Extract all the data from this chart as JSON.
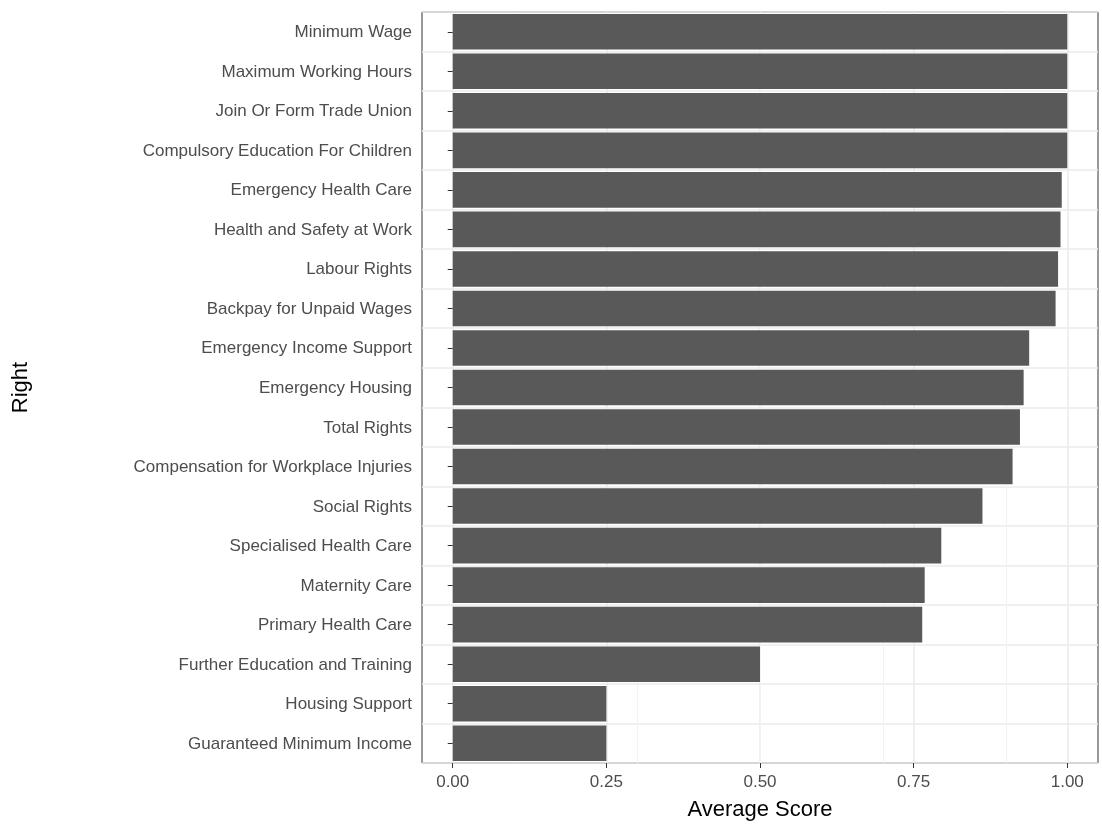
{
  "chart_data": {
    "type": "bar",
    "orientation": "horizontal",
    "xlabel": "Average Score",
    "ylabel": "Right",
    "categories": [
      "Minimum Wage",
      "Maximum Working Hours",
      "Join Or Form Trade Union",
      "Compulsory Education For Children",
      "Emergency Health Care",
      "Health and Safety at Work",
      "Labour Rights",
      "Backpay for Unpaid Wages",
      "Emergency Income Support",
      "Emergency Housing",
      "Total Rights",
      "Compensation for Workplace Injuries",
      "Social Rights",
      "Specialised Health Care",
      "Maternity Care",
      "Primary Health Care",
      "Further Education and Training",
      "Housing Support",
      "Guaranteed Minimum Income"
    ],
    "values": [
      1.0,
      1.0,
      1.0,
      1.0,
      0.991,
      0.989,
      0.985,
      0.981,
      0.938,
      0.929,
      0.923,
      0.911,
      0.862,
      0.795,
      0.768,
      0.764,
      0.5,
      0.25,
      0.25
    ],
    "color": "#595959",
    "xlim": [
      -0.05,
      1.05
    ],
    "xticks": [
      {
        "value": 0,
        "label": "0.00"
      },
      {
        "value": 0.25,
        "label": "0.25"
      },
      {
        "value": 0.5,
        "label": "0.50"
      },
      {
        "value": 0.75,
        "label": "0.75"
      },
      {
        "value": 1,
        "label": "1.00"
      }
    ],
    "grid": true
  }
}
